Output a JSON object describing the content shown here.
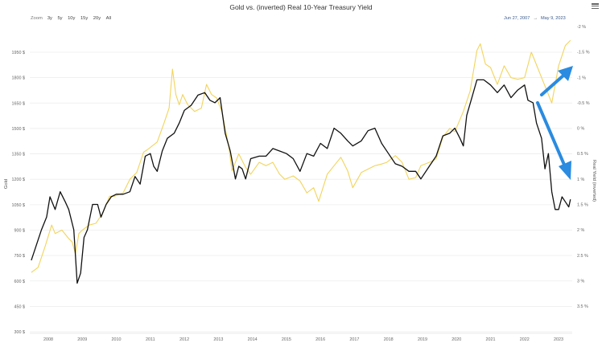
{
  "header": {
    "title": "Gold vs. (inverted) Real 10-Year Treasury Yield",
    "menu_icon": "hamburger-menu-icon"
  },
  "zoom": {
    "label": "Zoom",
    "buttons": [
      "3y",
      "5y",
      "10y",
      "15y",
      "20y",
      "All"
    ]
  },
  "range": {
    "from": "Jun 27, 2007",
    "arrow": "→",
    "to": "May 9, 2023"
  },
  "colors": {
    "gold_line": "#f2d45c",
    "yield_line": "#111111",
    "arrow": "#2a8be0",
    "grid": "#ececec"
  },
  "chart_data": {
    "type": "line",
    "title": "Gold vs. (inverted) Real 10-Year Treasury Yield",
    "xlabel": "",
    "ylabel": "Gold",
    "ylabel_right": "Real Yield (inverted)",
    "x_ticks": [
      "2008",
      "2009",
      "2010",
      "2011",
      "2012",
      "2013",
      "2014",
      "2015",
      "2016",
      "2017",
      "2018",
      "2019",
      "2020",
      "2021",
      "2022",
      "2023"
    ],
    "y_ticks_left": [
      "1950 $",
      "1800 $",
      "1650 $",
      "1500 $",
      "1350 $",
      "1200 $",
      "1050 $",
      "900 $",
      "750 $",
      "600 $",
      "450 $",
      "300 $"
    ],
    "y_ticks_right": [
      "-2 %",
      "-1.5 %",
      "-1 %",
      "-0.5 %",
      "0 %",
      "0.5 %",
      "1 %",
      "1.5 %",
      "2 %",
      "2.5 %",
      "3 %",
      "3.5 %"
    ],
    "ylim_left": [
      300,
      1950
    ],
    "ylim_right_inverted": [
      3.5,
      -2
    ],
    "grid": true,
    "legend": "none",
    "series": [
      {
        "name": "Gold",
        "axis": "left",
        "color": "#f2d45c",
        "x": [
          2007.5,
          2007.7,
          2007.9,
          2008.1,
          2008.2,
          2008.4,
          2008.6,
          2008.7,
          2008.8,
          2008.9,
          2009.0,
          2009.2,
          2009.4,
          2009.6,
          2009.8,
          2009.95,
          2010.2,
          2010.4,
          2010.6,
          2010.8,
          2010.95,
          2011.2,
          2011.4,
          2011.55,
          2011.65,
          2011.75,
          2011.85,
          2011.95,
          2012.1,
          2012.3,
          2012.5,
          2012.65,
          2012.8,
          2012.95,
          2013.1,
          2013.3,
          2013.4,
          2013.5,
          2013.6,
          2013.8,
          2013.95,
          2014.2,
          2014.4,
          2014.6,
          2014.8,
          2014.95,
          2015.2,
          2015.4,
          2015.6,
          2015.8,
          2015.95,
          2016.2,
          2016.4,
          2016.6,
          2016.8,
          2016.95,
          2017.2,
          2017.4,
          2017.6,
          2017.8,
          2017.95,
          2018.2,
          2018.4,
          2018.6,
          2018.8,
          2018.95,
          2019.2,
          2019.4,
          2019.6,
          2019.8,
          2019.95,
          2020.2,
          2020.4,
          2020.6,
          2020.7,
          2020.85,
          2021.0,
          2021.2,
          2021.4,
          2021.6,
          2021.8,
          2022.0,
          2022.2,
          2022.3,
          2022.5,
          2022.7,
          2022.8,
          2023.0,
          2023.2,
          2023.35
        ],
        "values": [
          650,
          680,
          800,
          930,
          880,
          900,
          850,
          830,
          760,
          880,
          900,
          930,
          940,
          1000,
          1100,
          1100,
          1120,
          1200,
          1240,
          1360,
          1380,
          1420,
          1530,
          1620,
          1850,
          1700,
          1640,
          1700,
          1640,
          1600,
          1620,
          1760,
          1700,
          1680,
          1600,
          1400,
          1250,
          1300,
          1350,
          1270,
          1230,
          1300,
          1280,
          1300,
          1230,
          1200,
          1220,
          1190,
          1120,
          1150,
          1070,
          1230,
          1280,
          1330,
          1250,
          1150,
          1240,
          1260,
          1280,
          1290,
          1300,
          1340,
          1300,
          1200,
          1210,
          1280,
          1300,
          1320,
          1450,
          1500,
          1480,
          1600,
          1720,
          1960,
          2000,
          1880,
          1860,
          1760,
          1870,
          1800,
          1790,
          1800,
          1950,
          1900,
          1800,
          1700,
          1650,
          1870,
          1990,
          2020
        ]
      },
      {
        "name": "Real Yield (inverted)",
        "axis": "right",
        "color": "#111111",
        "x": [
          2007.5,
          2007.6,
          2007.8,
          2007.95,
          2008.05,
          2008.2,
          2008.35,
          2008.5,
          2008.6,
          2008.75,
          2008.85,
          2008.95,
          2009.05,
          2009.15,
          2009.3,
          2009.45,
          2009.55,
          2009.7,
          2009.85,
          2010.0,
          2010.2,
          2010.4,
          2010.55,
          2010.7,
          2010.85,
          2011.0,
          2011.1,
          2011.2,
          2011.35,
          2011.5,
          2011.7,
          2011.85,
          2012.0,
          2012.2,
          2012.4,
          2012.6,
          2012.75,
          2012.9,
          2013.05,
          2013.2,
          2013.35,
          2013.5,
          2013.6,
          2013.7,
          2013.8,
          2013.95,
          2014.2,
          2014.4,
          2014.6,
          2014.8,
          2015.0,
          2015.2,
          2015.4,
          2015.6,
          2015.8,
          2016.0,
          2016.2,
          2016.4,
          2016.6,
          2016.8,
          2016.95,
          2017.2,
          2017.4,
          2017.6,
          2017.8,
          2018.0,
          2018.2,
          2018.4,
          2018.6,
          2018.8,
          2018.95,
          2019.2,
          2019.4,
          2019.6,
          2019.8,
          2019.95,
          2020.1,
          2020.2,
          2020.3,
          2020.45,
          2020.6,
          2020.8,
          2021.0,
          2021.2,
          2021.4,
          2021.6,
          2021.8,
          2022.0,
          2022.1,
          2022.25,
          2022.35,
          2022.5,
          2022.6,
          2022.7,
          2022.8,
          2022.9,
          2023.0,
          2023.1,
          2023.2,
          2023.3,
          2023.35
        ],
        "values": [
          2.6,
          2.4,
          2.0,
          1.75,
          1.35,
          1.6,
          1.25,
          1.45,
          1.6,
          2.0,
          3.05,
          2.85,
          2.15,
          2.0,
          1.5,
          1.5,
          1.75,
          1.5,
          1.35,
          1.3,
          1.3,
          1.25,
          0.95,
          1.1,
          0.55,
          0.5,
          0.75,
          0.85,
          0.45,
          0.2,
          0.1,
          -0.1,
          -0.35,
          -0.45,
          -0.65,
          -0.7,
          -0.55,
          -0.5,
          -0.6,
          0.1,
          0.45,
          1.0,
          0.75,
          0.8,
          1.0,
          0.6,
          0.55,
          0.55,
          0.4,
          0.45,
          0.5,
          0.6,
          0.85,
          0.5,
          0.55,
          0.3,
          0.4,
          0.0,
          0.1,
          0.25,
          0.35,
          0.25,
          0.05,
          0.0,
          0.3,
          0.5,
          0.7,
          0.75,
          0.85,
          0.85,
          1.0,
          0.75,
          0.55,
          0.15,
          0.1,
          0.0,
          0.2,
          0.35,
          -0.25,
          -0.6,
          -0.95,
          -0.95,
          -0.85,
          -0.7,
          -0.85,
          -0.6,
          -0.75,
          -0.85,
          -0.55,
          -0.5,
          -0.1,
          0.2,
          0.8,
          0.5,
          1.25,
          1.6,
          1.6,
          1.35,
          1.45,
          1.55,
          1.4
        ]
      }
    ],
    "annotations": [
      {
        "type": "arrow",
        "direction": "up-right",
        "color": "#2a8be0",
        "note": "gold rising 2022-2023"
      },
      {
        "type": "arrow",
        "direction": "down-right",
        "color": "#2a8be0",
        "note": "inverted real yield falling 2022-2023"
      }
    ]
  }
}
